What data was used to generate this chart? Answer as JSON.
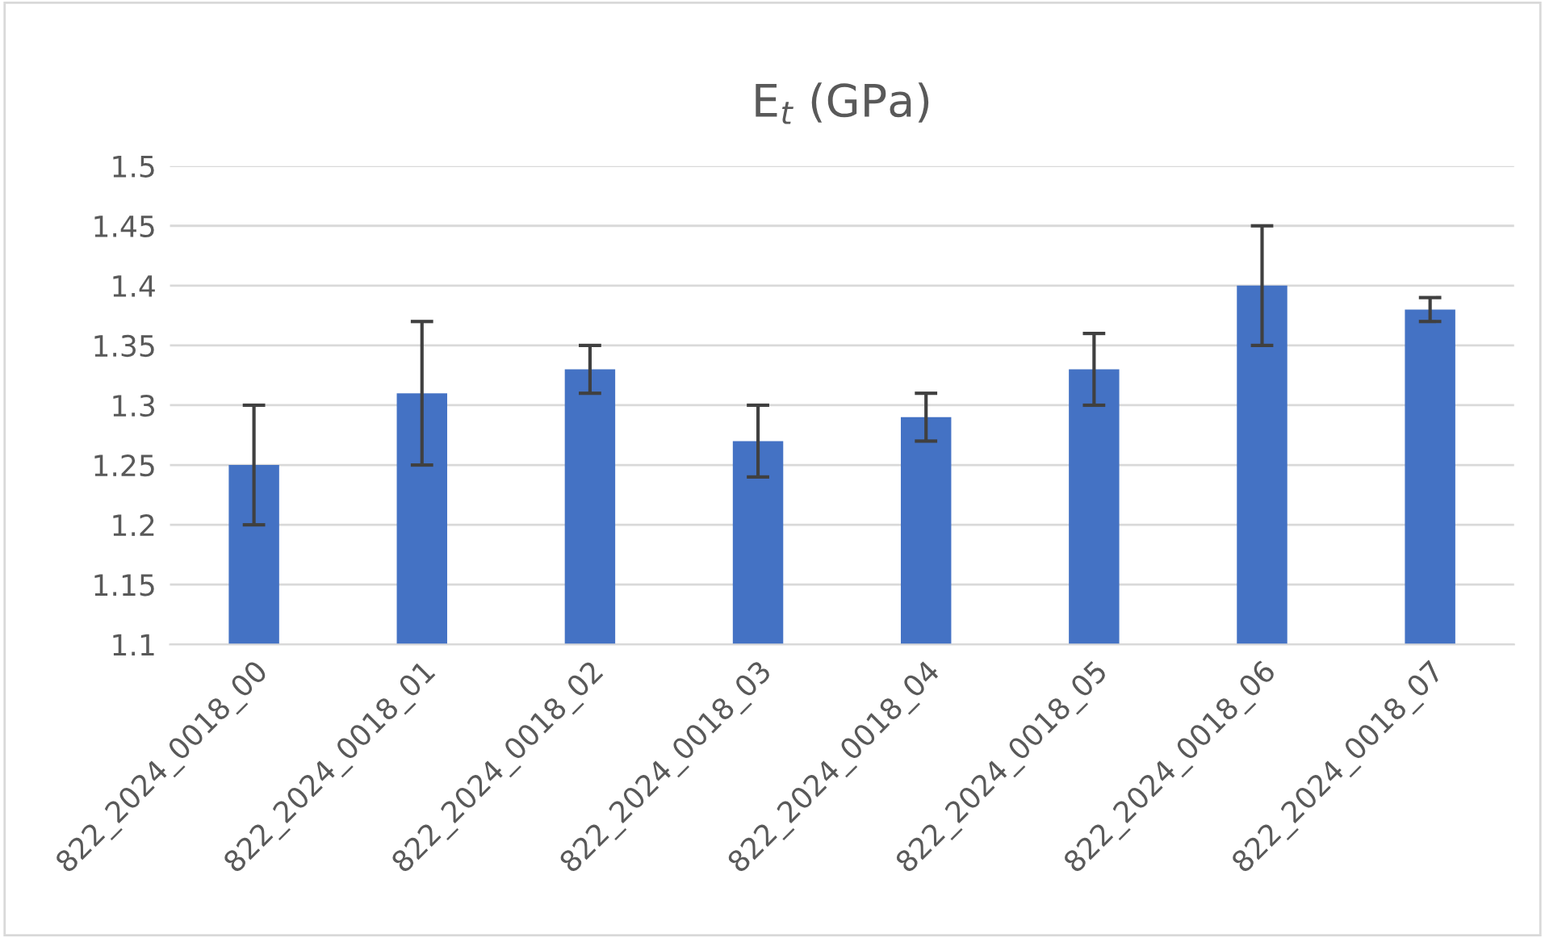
{
  "chart_data": {
    "type": "bar",
    "title": "E$_{t}$ (GPa)",
    "categories": [
      "822_2024_0018_00",
      "822_2024_0018_01",
      "822_2024_0018_02",
      "822_2024_0018_03",
      "822_2024_0018_04",
      "822_2024_0018_05",
      "822_2024_0018_06",
      "822_2024_0018_07"
    ],
    "values": [
      1.25,
      1.31,
      1.33,
      1.27,
      1.29,
      1.33,
      1.4,
      1.38
    ],
    "errors": [
      0.05,
      0.06,
      0.02,
      0.03,
      0.02,
      0.03,
      0.05,
      0.01
    ],
    "color": "#4472c4",
    "ylim": [
      1.1,
      1.5
    ],
    "yticks": [
      1.1,
      1.15,
      1.2,
      1.25,
      1.3,
      1.35,
      1.4,
      1.45,
      1.5
    ],
    "grid": "y"
  }
}
